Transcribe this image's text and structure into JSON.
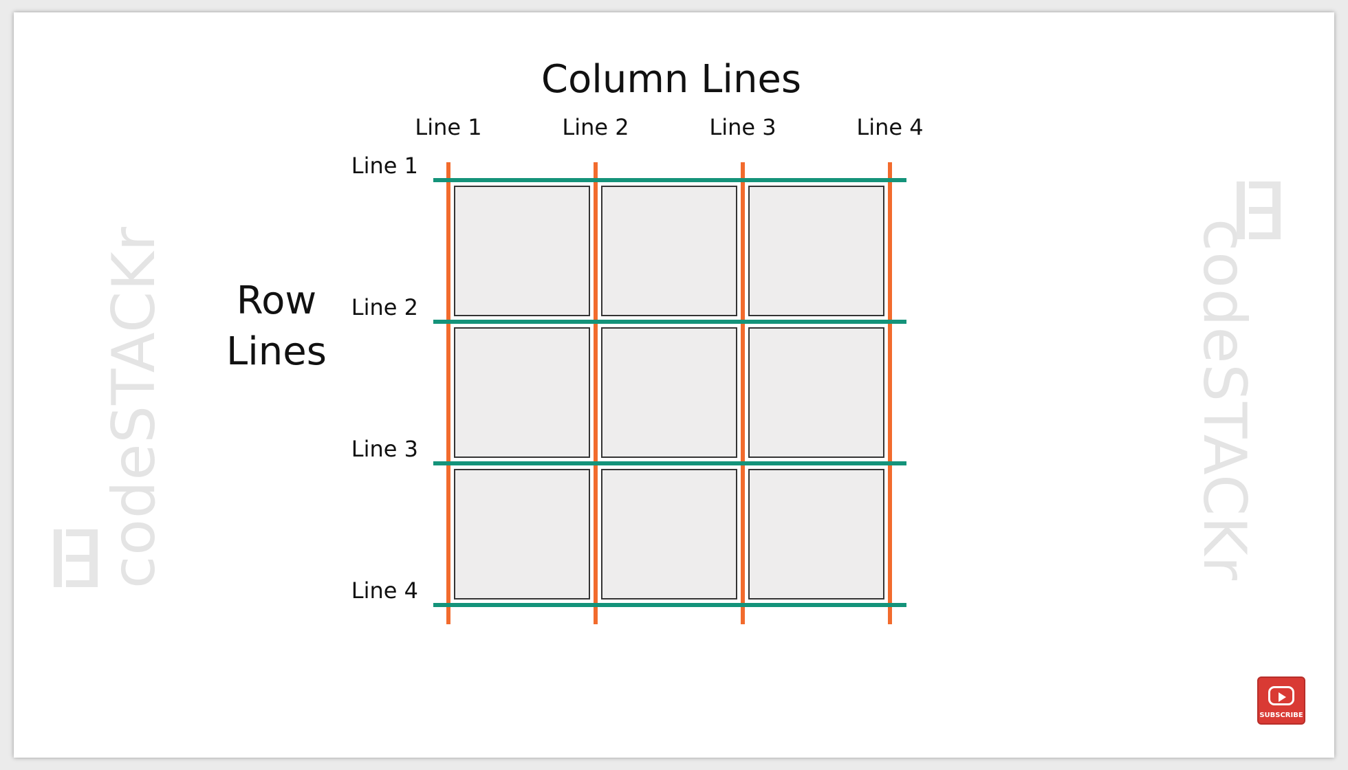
{
  "diagram": {
    "title": "Column Lines",
    "row_title_line1": "Row",
    "row_title_line2": "Lines",
    "column_line_labels": [
      "Line 1",
      "Line 2",
      "Line 3",
      "Line 4"
    ],
    "row_line_labels": [
      "Line 1",
      "Line 2",
      "Line 3",
      "Line 4"
    ],
    "grid": {
      "rows": 3,
      "columns": 3
    },
    "colors": {
      "column_line": "#f26b2d",
      "row_line": "#14937a",
      "cell_fill": "#eeeded",
      "cell_border": "#333333"
    }
  },
  "watermark": {
    "text": "codeSTACKr",
    "logo_icon": "codestackr-logo-icon"
  },
  "subscribe_button": {
    "label": "SUBSCRIBE",
    "icon": "youtube-play-icon"
  }
}
